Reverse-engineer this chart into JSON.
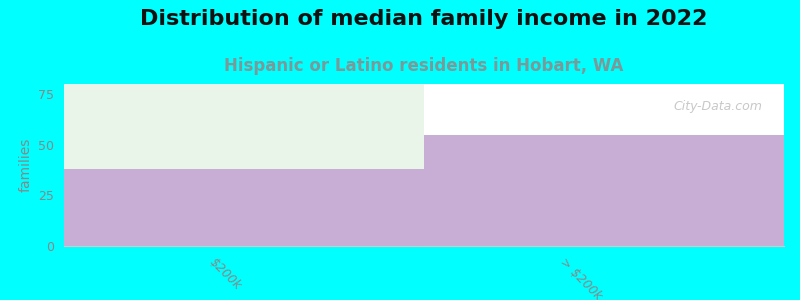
{
  "title": "Distribution of median family income in 2022",
  "subtitle": "Hispanic or Latino residents in Hobart, WA",
  "categories": [
    "$200k",
    "> $200k"
  ],
  "values": [
    38,
    55
  ],
  "bar_color": "#c8aed4",
  "background_color": "#00ffff",
  "plot_bg_color": "#ffffff",
  "ylabel": "families",
  "ylim": [
    0,
    80
  ],
  "yticks": [
    0,
    25,
    50,
    75
  ],
  "title_fontsize": 16,
  "subtitle_fontsize": 12,
  "subtitle_color": "#7a9a9a",
  "watermark": "City-Data.com",
  "bar1_top_color": "#e8f5e8",
  "bar_width": 1.0
}
